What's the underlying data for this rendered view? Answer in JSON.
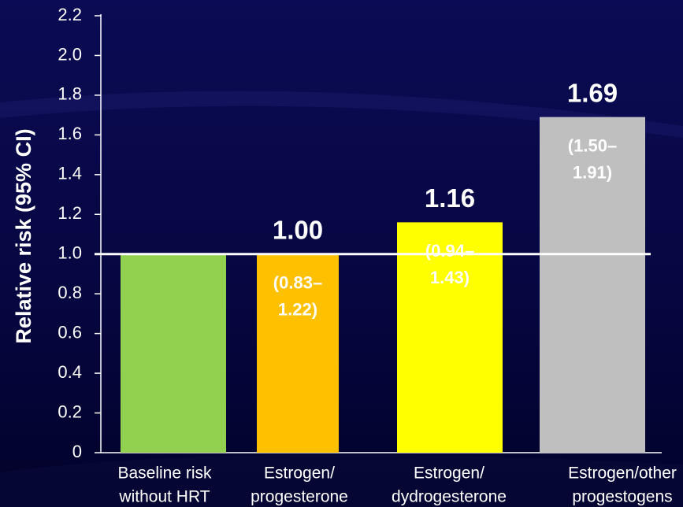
{
  "chart_data": {
    "type": "bar",
    "y_label": "Relative risk (95% CI)",
    "categories": [
      [
        "Baseline risk",
        "without HRT"
      ],
      [
        "Estrogen/",
        "progesterone"
      ],
      [
        "Estrogen/",
        "dydrogesterone"
      ],
      [
        "Estrogen/other",
        "progestogens"
      ]
    ],
    "values": [
      1,
      1.0,
      1.16,
      1.69
    ],
    "value_labels": [
      null,
      "1.00",
      "1.16",
      "1.69"
    ],
    "ci_labels": [
      null,
      [
        "(0.83–",
        "1.22)"
      ],
      [
        "(0.94–",
        "1.43)"
      ],
      [
        "(1.50–",
        "1.91)"
      ]
    ],
    "colors": [
      "#92d050",
      "#ffc000",
      "#ffff00",
      "#bfbfbf"
    ],
    "reference_line": 1,
    "ylim": [
      0,
      2.2
    ],
    "yticks": [
      0,
      0.2,
      0.4,
      0.6,
      0.8,
      {
        "value": 1,
        "label": "1.0"
      },
      1.2,
      1.4,
      1.6,
      1.8,
      {
        "value": 2,
        "label": "2.0"
      },
      2.2
    ]
  }
}
